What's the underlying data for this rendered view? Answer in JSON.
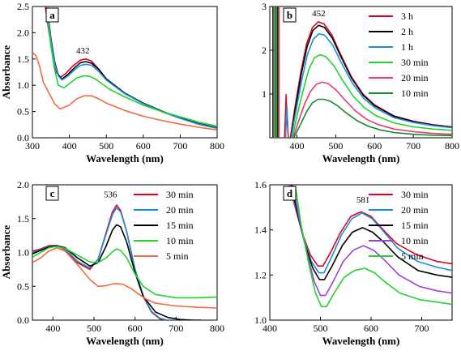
{
  "chart_data": [
    {
      "panel": "a",
      "type": "line",
      "xlabel": "Wavelength (nm)",
      "ylabel": "Absorbance",
      "xlim": [
        300,
        800
      ],
      "ylim": [
        0,
        2.5
      ],
      "xticks": [
        "300",
        "400",
        "500",
        "600",
        "700",
        "800"
      ],
      "yticks": [
        "0.0",
        "0.5",
        "1.0",
        "1.5",
        "2.0",
        "2.5"
      ],
      "annotation": {
        "text": "432",
        "x": 432,
        "y": 1.56
      },
      "legend": null,
      "series": [
        {
          "color": "#e0001e",
          "x": [
            335,
            345,
            355,
            365,
            375,
            390,
            410,
            430,
            445,
            460,
            480,
            500,
            550,
            600,
            650,
            700,
            750,
            800
          ],
          "y": [
            2.5,
            2.0,
            1.6,
            1.25,
            1.15,
            1.22,
            1.37,
            1.48,
            1.5,
            1.46,
            1.3,
            1.12,
            0.85,
            0.65,
            0.5,
            0.37,
            0.26,
            0.18
          ]
        },
        {
          "color": "#000000",
          "x": [
            340,
            350,
            360,
            370,
            380,
            395,
            415,
            430,
            445,
            460,
            480,
            500,
            550,
            600,
            650,
            700,
            750,
            800
          ],
          "y": [
            2.5,
            1.9,
            1.45,
            1.2,
            1.12,
            1.2,
            1.34,
            1.43,
            1.45,
            1.42,
            1.3,
            1.12,
            0.85,
            0.66,
            0.51,
            0.38,
            0.27,
            0.19
          ]
        },
        {
          "color": "#1a8fd6",
          "x": [
            340,
            350,
            360,
            370,
            380,
            395,
            415,
            430,
            445,
            460,
            480,
            500,
            550,
            600,
            650,
            700,
            750,
            800
          ],
          "y": [
            2.5,
            1.85,
            1.42,
            1.18,
            1.1,
            1.17,
            1.3,
            1.38,
            1.4,
            1.38,
            1.26,
            1.1,
            0.84,
            0.65,
            0.5,
            0.37,
            0.26,
            0.18
          ]
        },
        {
          "color": "#22d22e",
          "x": [
            338,
            350,
            360,
            370,
            385,
            400,
            420,
            440,
            455,
            470,
            490,
            510,
            550,
            600,
            650,
            700,
            750,
            800
          ],
          "y": [
            2.5,
            1.75,
            1.3,
            1.0,
            0.95,
            1.03,
            1.14,
            1.18,
            1.17,
            1.12,
            1.02,
            0.92,
            0.78,
            0.62,
            0.5,
            0.4,
            0.3,
            0.22
          ]
        },
        {
          "color": "#f26a3d",
          "x": [
            300,
            310,
            320,
            330,
            345,
            360,
            375,
            400,
            420,
            440,
            460,
            480,
            500,
            550,
            600,
            650,
            700,
            750,
            800
          ],
          "y": [
            1.62,
            1.56,
            1.35,
            1.05,
            0.85,
            0.65,
            0.55,
            0.62,
            0.74,
            0.8,
            0.8,
            0.74,
            0.66,
            0.52,
            0.41,
            0.33,
            0.26,
            0.2,
            0.15
          ]
        }
      ]
    },
    {
      "panel": "b",
      "type": "line",
      "xlabel": "Wavelength (nm)",
      "ylabel": "",
      "xlim": [
        330,
        800
      ],
      "ylim": [
        0,
        3
      ],
      "xticks": [
        "400",
        "500",
        "600",
        "700",
        "800"
      ],
      "yticks": [
        "1",
        "2",
        "3"
      ],
      "annotation": {
        "text": "452",
        "x": 452,
        "y": 2.72
      },
      "legend": {
        "position": "top-right",
        "labels": [
          "3 h",
          "2 h",
          "1 h",
          "30 min",
          "20 min",
          "10 min"
        ]
      },
      "series": [
        {
          "name": "3 h",
          "color": "#e0001e",
          "x": [
            383,
            395,
            410,
            425,
            440,
            455,
            470,
            490,
            510,
            540,
            570,
            600,
            650,
            700,
            750,
            800
          ],
          "y": [
            0.0,
            0.7,
            1.5,
            2.15,
            2.52,
            2.65,
            2.6,
            2.35,
            1.95,
            1.4,
            1.0,
            0.75,
            0.5,
            0.38,
            0.3,
            0.25
          ]
        },
        {
          "name": "2 h",
          "color": "#000000",
          "x": [
            384,
            396,
            411,
            426,
            441,
            456,
            471,
            491,
            511,
            541,
            571,
            601,
            650,
            700,
            750,
            800
          ],
          "y": [
            0.0,
            0.67,
            1.45,
            2.08,
            2.45,
            2.57,
            2.52,
            2.28,
            1.9,
            1.36,
            0.97,
            0.73,
            0.49,
            0.37,
            0.29,
            0.24
          ]
        },
        {
          "name": "1 h",
          "color": "#1a8fd6",
          "x": [
            385,
            397,
            412,
            427,
            442,
            457,
            472,
            492,
            512,
            542,
            572,
            602,
            650,
            700,
            750,
            800
          ],
          "y": [
            0.0,
            0.6,
            1.3,
            1.9,
            2.25,
            2.38,
            2.34,
            2.12,
            1.76,
            1.26,
            0.9,
            0.68,
            0.46,
            0.35,
            0.28,
            0.23
          ]
        },
        {
          "name": "30 min",
          "color": "#22d22e",
          "x": [
            388,
            400,
            415,
            430,
            445,
            460,
            475,
            495,
            515,
            545,
            575,
            605,
            650,
            700,
            750,
            800
          ],
          "y": [
            0.0,
            0.5,
            1.05,
            1.55,
            1.83,
            1.9,
            1.85,
            1.65,
            1.35,
            0.95,
            0.68,
            0.5,
            0.34,
            0.25,
            0.2,
            0.17
          ]
        },
        {
          "name": "20 min",
          "color": "#e83a6b",
          "x": [
            390,
            405,
            420,
            435,
            450,
            465,
            480,
            500,
            520,
            550,
            580,
            610,
            650,
            700,
            750,
            800
          ],
          "y": [
            0.0,
            0.4,
            0.78,
            1.06,
            1.22,
            1.27,
            1.24,
            1.1,
            0.9,
            0.62,
            0.42,
            0.3,
            0.2,
            0.14,
            0.1,
            0.08
          ]
        },
        {
          "name": "10 min",
          "color": "#138a2a",
          "x": [
            392,
            410,
            425,
            440,
            455,
            470,
            485,
            505,
            525,
            555,
            585,
            615,
            650,
            700,
            750,
            800
          ],
          "y": [
            0.0,
            0.32,
            0.6,
            0.8,
            0.88,
            0.88,
            0.84,
            0.73,
            0.58,
            0.39,
            0.26,
            0.18,
            0.12,
            0.08,
            0.06,
            0.05
          ]
        }
      ]
    },
    {
      "panel": "c",
      "type": "line",
      "xlabel": "Wavelength (nm)",
      "ylabel": "Absorbance",
      "xlim": [
        350,
        800
      ],
      "ylim": [
        0,
        2.0
      ],
      "xticks": [
        "400",
        "500",
        "600",
        "700",
        "800"
      ],
      "yticks": [
        "0.0",
        "0.5",
        "1.0",
        "1.5",
        "2.0"
      ],
      "annotation": {
        "text": "536",
        "x": 536,
        "y": 1.78
      },
      "legend": {
        "position": "top-right",
        "labels": [
          "30 min",
          "20 min",
          "15 min",
          "10 min",
          "5 min"
        ]
      },
      "series": [
        {
          "name": "30 min",
          "color": "#e0001e",
          "x": [
            350,
            370,
            390,
            410,
            430,
            460,
            490,
            510,
            530,
            545,
            555,
            565,
            580,
            600,
            620,
            640,
            660,
            680,
            700
          ],
          "y": [
            1.02,
            1.05,
            1.1,
            1.1,
            1.04,
            0.85,
            0.75,
            0.9,
            1.3,
            1.6,
            1.7,
            1.62,
            1.3,
            0.75,
            0.35,
            0.12,
            0.02,
            0.0,
            0.0
          ]
        },
        {
          "name": "20 min",
          "color": "#1a8fd6",
          "x": [
            350,
            370,
            390,
            410,
            430,
            460,
            490,
            510,
            530,
            545,
            555,
            565,
            580,
            600,
            620,
            640,
            660,
            680,
            700
          ],
          "y": [
            1.0,
            1.04,
            1.09,
            1.1,
            1.05,
            0.87,
            0.77,
            0.9,
            1.28,
            1.56,
            1.66,
            1.6,
            1.3,
            0.75,
            0.36,
            0.13,
            0.03,
            0.0,
            0.0
          ]
        },
        {
          "name": "15 min",
          "color": "#000000",
          "x": [
            350,
            370,
            390,
            410,
            430,
            460,
            490,
            510,
            530,
            545,
            555,
            565,
            580,
            600,
            620,
            650,
            680,
            710,
            740,
            760
          ],
          "y": [
            0.98,
            1.03,
            1.08,
            1.1,
            1.07,
            0.92,
            0.8,
            0.85,
            1.1,
            1.33,
            1.41,
            1.38,
            1.15,
            0.7,
            0.35,
            0.12,
            0.04,
            0.01,
            0.0,
            0.0
          ]
        },
        {
          "name": "10 min",
          "color": "#22d22e",
          "x": [
            350,
            370,
            390,
            410,
            430,
            460,
            490,
            510,
            530,
            545,
            555,
            565,
            580,
            600,
            620,
            650,
            700,
            750,
            800
          ],
          "y": [
            0.93,
            1.0,
            1.07,
            1.09,
            1.06,
            0.96,
            0.86,
            0.85,
            0.92,
            1.01,
            1.05,
            1.03,
            0.92,
            0.68,
            0.5,
            0.38,
            0.33,
            0.33,
            0.34
          ]
        },
        {
          "name": "5 min",
          "color": "#f26a3d",
          "x": [
            350,
            370,
            390,
            410,
            430,
            460,
            490,
            510,
            530,
            550,
            570,
            590,
            610,
            630,
            650,
            700,
            750,
            800
          ],
          "y": [
            0.85,
            0.92,
            1.02,
            1.07,
            1.02,
            0.82,
            0.6,
            0.5,
            0.51,
            0.54,
            0.53,
            0.47,
            0.38,
            0.3,
            0.25,
            0.21,
            0.19,
            0.18
          ]
        }
      ]
    },
    {
      "panel": "d",
      "type": "line",
      "xlabel": "Wavelength (nm)",
      "ylabel": "",
      "xlim": [
        400,
        760
      ],
      "ylim": [
        1.0,
        1.6
      ],
      "xticks": [
        "400",
        "500",
        "600",
        "700"
      ],
      "yticks": [
        "1.0",
        "1.2",
        "1.4",
        "1.6"
      ],
      "annotation": {
        "text": "581",
        "x": 581,
        "y": 1.51
      },
      "legend": {
        "position": "top-right",
        "labels": [
          "30 min",
          "20 min",
          "15 min",
          "10 min",
          "5 min"
        ]
      },
      "series": [
        {
          "name": "30 min",
          "color": "#e0001e",
          "x": [
            438,
            450,
            465,
            480,
            495,
            505,
            520,
            540,
            560,
            580,
            600,
            620,
            650,
            690,
            730,
            760
          ],
          "y": [
            1.6,
            1.5,
            1.38,
            1.29,
            1.24,
            1.24,
            1.3,
            1.39,
            1.46,
            1.48,
            1.46,
            1.41,
            1.34,
            1.29,
            1.26,
            1.25
          ]
        },
        {
          "name": "20 min",
          "color": "#1a8fd6",
          "x": [
            440,
            452,
            467,
            482,
            497,
            507,
            522,
            542,
            562,
            582,
            602,
            622,
            652,
            692,
            730,
            760
          ],
          "y": [
            1.6,
            1.49,
            1.36,
            1.26,
            1.21,
            1.21,
            1.28,
            1.38,
            1.45,
            1.475,
            1.45,
            1.4,
            1.32,
            1.26,
            1.235,
            1.22
          ]
        },
        {
          "name": "15 min",
          "color": "#000000",
          "x": [
            443,
            455,
            470,
            485,
            498,
            508,
            523,
            543,
            563,
            583,
            603,
            623,
            653,
            693,
            730,
            760
          ],
          "y": [
            1.6,
            1.47,
            1.33,
            1.23,
            1.18,
            1.18,
            1.24,
            1.33,
            1.39,
            1.41,
            1.39,
            1.35,
            1.28,
            1.22,
            1.2,
            1.19
          ]
        },
        {
          "name": "10 min",
          "color": "#9b42d9",
          "x": [
            446,
            458,
            473,
            488,
            500,
            510,
            525,
            545,
            565,
            585,
            605,
            625,
            655,
            695,
            730,
            760
          ],
          "y": [
            1.6,
            1.45,
            1.3,
            1.17,
            1.11,
            1.11,
            1.17,
            1.26,
            1.31,
            1.33,
            1.31,
            1.27,
            1.2,
            1.15,
            1.13,
            1.12
          ]
        },
        {
          "name": "5 min",
          "color": "#22d22e",
          "x": [
            450,
            462,
            477,
            490,
            502,
            512,
            527,
            547,
            567,
            587,
            607,
            627,
            657,
            697,
            730,
            760
          ],
          "y": [
            1.6,
            1.42,
            1.25,
            1.12,
            1.06,
            1.06,
            1.12,
            1.19,
            1.22,
            1.23,
            1.21,
            1.17,
            1.12,
            1.09,
            1.08,
            1.07
          ]
        }
      ]
    }
  ]
}
